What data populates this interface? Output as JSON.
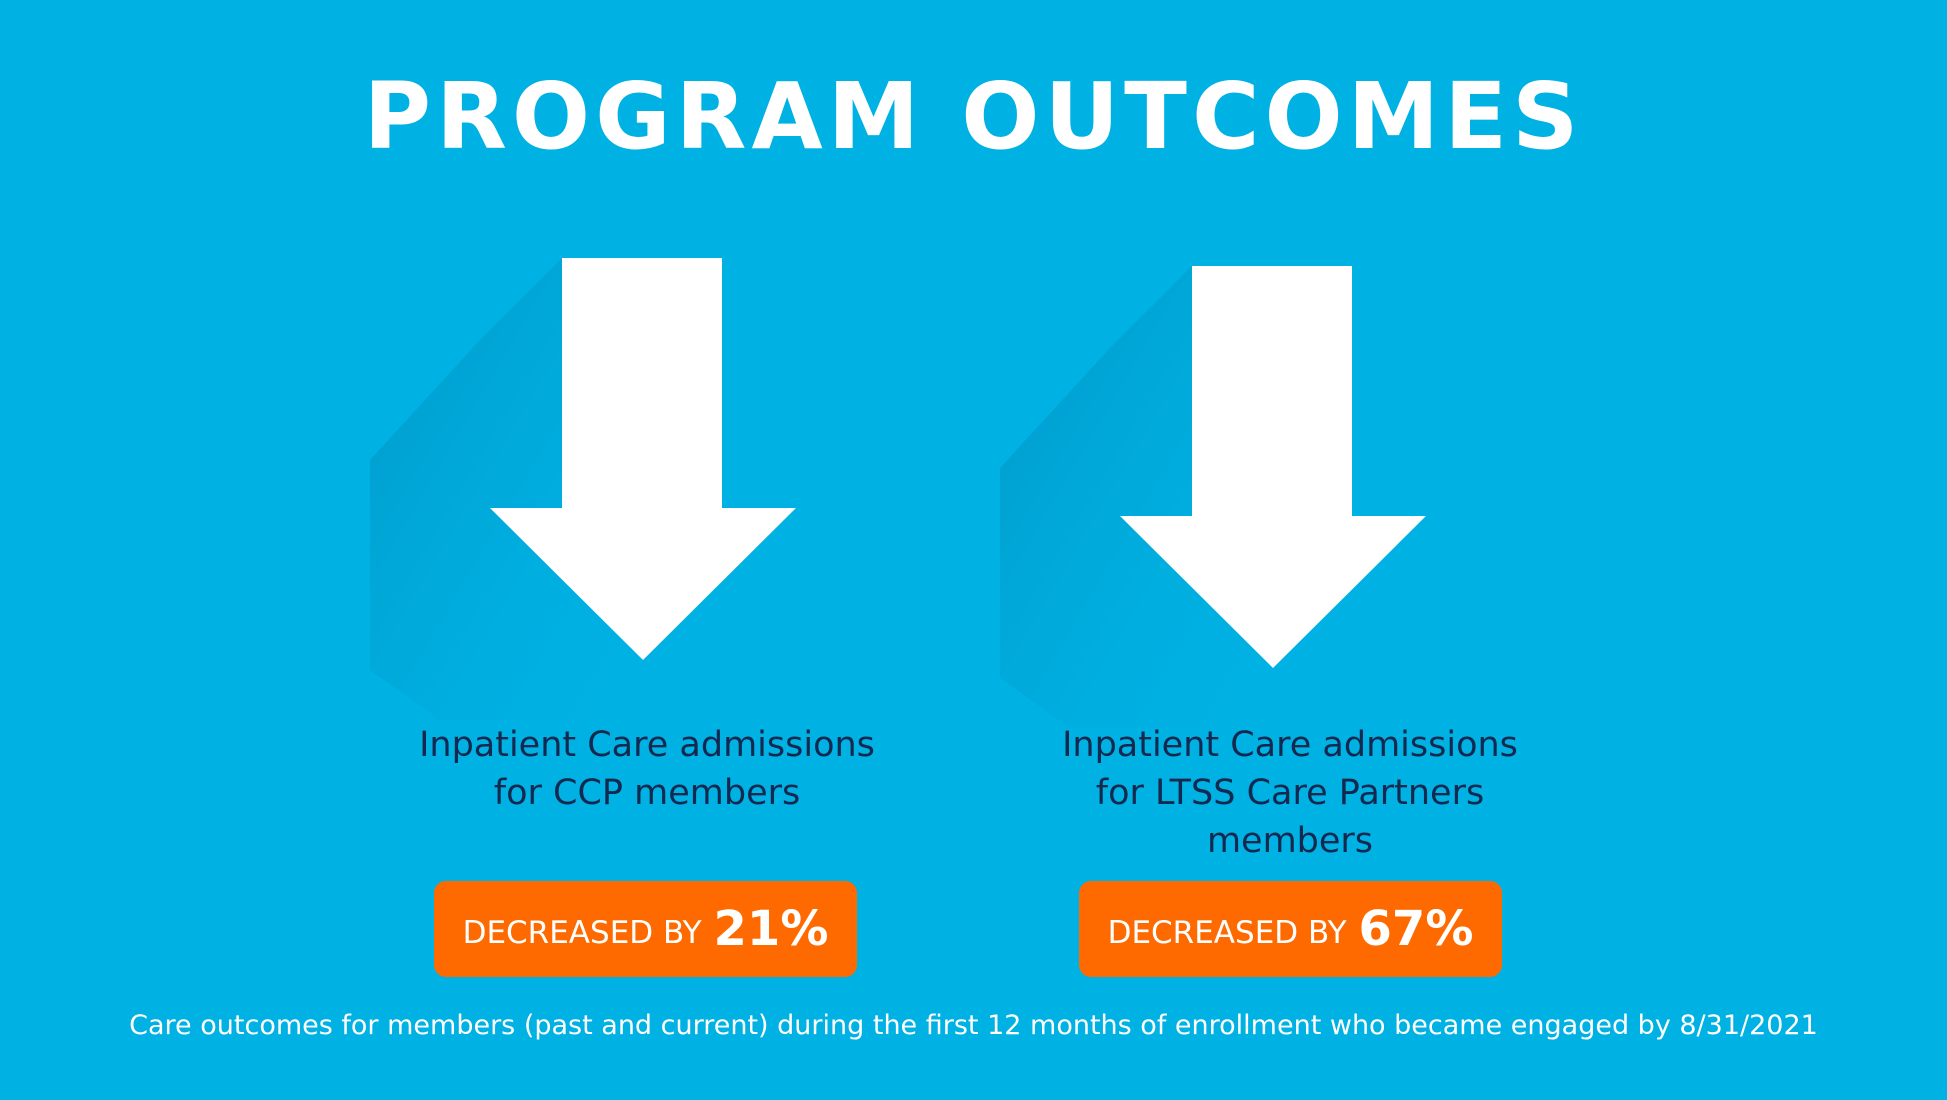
{
  "title": "PROGRAM OUTCOMES",
  "colors": {
    "background": "#00b1e3",
    "arrow": "#ffffff",
    "badge": "#ff6a00",
    "description_text": "#14294f"
  },
  "outcomes": [
    {
      "icon": "down-arrow-icon",
      "description": "Inpatient Care admissions for CCP members",
      "badge_label": "DECREASED BY",
      "badge_value": "21%"
    },
    {
      "icon": "down-arrow-icon",
      "description": "Inpatient Care admissions for LTSS Care Partners members",
      "badge_label": "DECREASED BY",
      "badge_value": "67%"
    }
  ],
  "footnote": "Care outcomes for members (past and current) during the first 12 months of enrollment who became engaged by 8/31/2021"
}
